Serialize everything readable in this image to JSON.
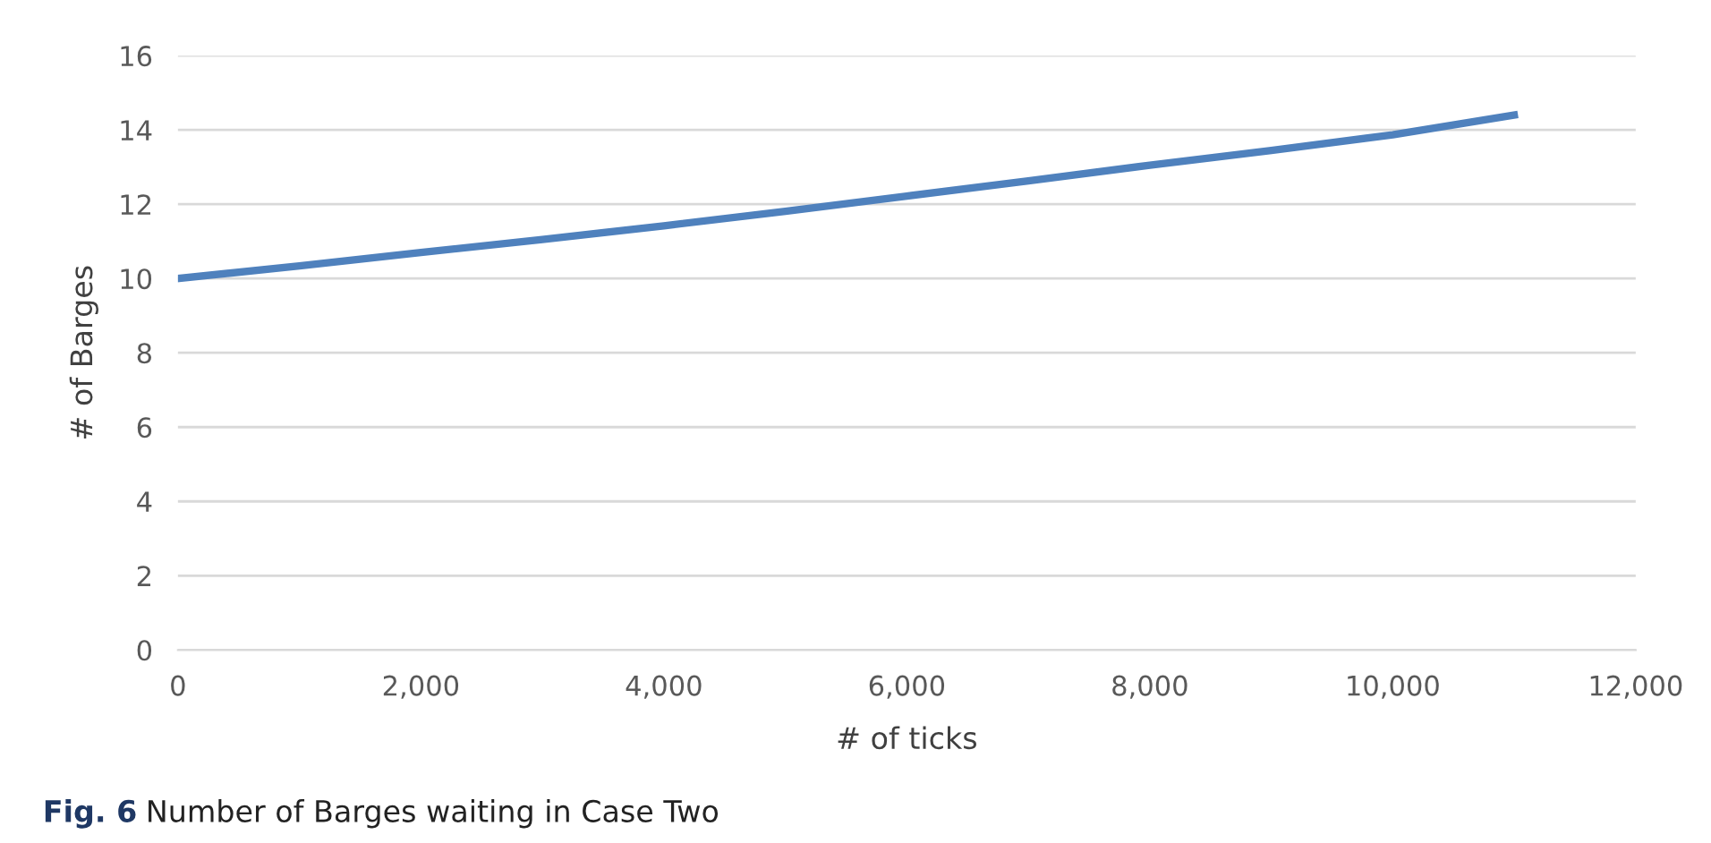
{
  "chart_data": {
    "type": "line",
    "xlabel": "# of ticks",
    "ylabel": "# of Barges",
    "x": [
      0,
      1000,
      2000,
      3000,
      4000,
      5000,
      6000,
      7000,
      8000,
      9000,
      10000,
      11000
    ],
    "series": [
      {
        "color": "#4f81bd",
        "values": [
          10,
          10.34,
          10.7,
          11.05,
          11.42,
          11.81,
          12.22,
          12.63,
          13.05,
          13.45,
          13.87,
          14.4
        ]
      }
    ],
    "xlim": [
      0,
      12000
    ],
    "xticks": [
      {
        "value": 0,
        "label": "0"
      },
      {
        "value": 2000,
        "label": "2,000"
      },
      {
        "value": 4000,
        "label": "4,000"
      },
      {
        "value": 6000,
        "label": "6,000"
      },
      {
        "value": 8000,
        "label": "8,000"
      },
      {
        "value": 10000,
        "label": "10,000"
      },
      {
        "value": 12000,
        "label": "12,000"
      }
    ],
    "ylim": [
      0,
      16
    ],
    "yticks": [
      0,
      2,
      4,
      6,
      8,
      10,
      12,
      14,
      16
    ],
    "grid": "y",
    "line_style": "solid",
    "marker": "none",
    "legend": false,
    "annotations": [
      "Fig. 6",
      "Number of Barges waiting in Case Two"
    ]
  }
}
